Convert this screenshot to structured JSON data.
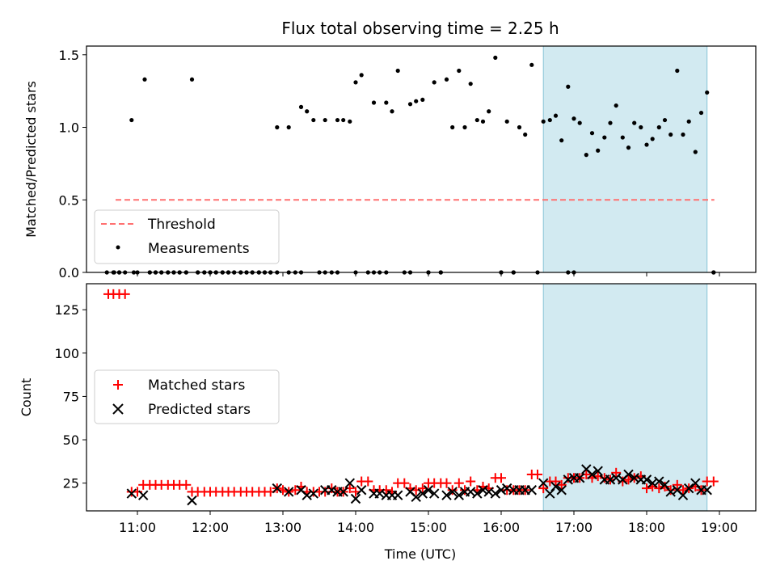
{
  "chart_data": {
    "title": "Flux total observing time = 2.25 h",
    "xlabel": "Time (UTC)",
    "x_ticks": [
      "11:00",
      "12:00",
      "13:00",
      "14:00",
      "15:00",
      "16:00",
      "17:00",
      "18:00",
      "19:00"
    ],
    "x_range_hours": [
      10.3,
      19.5
    ],
    "highlight_span_hours": [
      16.58,
      18.83
    ],
    "colors": {
      "highlight": "#add8e6",
      "matched": "#ff0000",
      "predicted": "#000000",
      "threshold": "#ff7070"
    },
    "panels": [
      {
        "type": "scatter",
        "ylabel": "Matched/Predicted stars",
        "ylim": [
          0,
          1.56
        ],
        "y_ticks": [
          0.0,
          0.5,
          1.0,
          1.5
        ],
        "y_tick_labels": [
          "0.0",
          "0.5",
          "1.0",
          "1.5"
        ],
        "legend": {
          "placement": "lower-left",
          "entries": [
            "Threshold",
            "Measurements"
          ]
        },
        "series": [
          {
            "name": "Threshold",
            "kind": "dashed-line",
            "x": [
              10.7,
              18.93
            ],
            "y": [
              0.5,
              0.5
            ]
          },
          {
            "name": "Measurements",
            "kind": "points",
            "x": [
              10.68,
              10.75,
              10.83,
              10.92,
              10.95,
              11.1,
              11.17,
              11.25,
              11.33,
              11.42,
              11.5,
              11.58,
              11.67,
              11.75,
              11.83,
              11.92,
              12.0,
              12.08,
              12.17,
              12.25,
              12.33,
              12.42,
              12.5,
              12.58,
              12.67,
              12.75,
              12.83,
              12.92,
              13.08,
              13.17,
              13.25,
              13.33,
              13.42,
              13.5,
              13.58,
              13.67,
              13.75,
              13.83,
              13.92,
              14.0,
              14.08,
              14.17,
              14.25,
              14.33,
              14.42,
              14.5,
              14.58,
              14.67,
              14.75,
              14.83,
              14.92,
              15.0,
              15.08,
              15.17,
              15.25,
              15.33,
              15.42,
              15.5,
              15.58,
              15.67,
              15.75,
              15.83,
              15.92,
              16.0,
              16.08,
              16.17,
              16.25,
              16.33,
              16.42,
              16.5,
              16.58,
              16.67,
              16.75,
              16.83,
              16.92,
              17.0,
              17.08,
              17.17,
              17.25,
              17.33,
              17.42,
              17.5,
              17.58,
              17.67,
              17.75,
              17.83,
              17.92,
              18.0,
              18.08,
              18.17,
              18.25,
              18.33,
              18.42,
              18.5,
              18.58,
              18.67,
              18.75,
              18.83,
              18.92,
              10.58,
              10.67,
              10.75,
              11.0,
              11.17,
              11.25,
              11.33,
              11.42,
              11.5,
              11.58,
              11.67,
              11.83,
              11.92,
              12.0,
              12.08,
              12.17,
              12.25,
              12.33,
              12.42,
              12.5,
              12.58,
              12.67,
              12.75,
              12.83,
              12.92,
              13.08,
              13.25,
              13.58,
              13.75,
              14.0,
              14.25,
              14.42,
              14.75,
              15.0,
              15.17,
              16.0,
              16.17,
              16.92,
              17.0,
              18.92
            ],
            "y": [
              0,
              0,
              0,
              1.05,
              0,
              1.33,
              0,
              0,
              0,
              0,
              0,
              0,
              0,
              1.33,
              0,
              0,
              0,
              0,
              0,
              0,
              0,
              0,
              0,
              0,
              0,
              0,
              0,
              1.0,
              1.0,
              0,
              1.14,
              1.11,
              1.05,
              0,
              1.05,
              0,
              1.05,
              1.05,
              1.04,
              1.31,
              1.36,
              0,
              1.17,
              0,
              1.17,
              1.11,
              1.39,
              0,
              1.16,
              1.18,
              1.19,
              0,
              1.31,
              0,
              1.33,
              1.0,
              1.39,
              1.0,
              1.3,
              1.05,
              1.04,
              1.11,
              1.48,
              0,
              1.04,
              0,
              1.0,
              0.95,
              1.43,
              0,
              1.04,
              1.05,
              1.08,
              0.91,
              1.28,
              1.06,
              1.03,
              0.81,
              0.96,
              0.84,
              0.93,
              1.03,
              1.15,
              0.93,
              0.86,
              1.03,
              1.0,
              0.88,
              0.92,
              1.0,
              1.05,
              0.95,
              1.39,
              0.95,
              1.04,
              0.83,
              1.1,
              1.24,
              0,
              0,
              0,
              0,
              0,
              0,
              0,
              0,
              0,
              0,
              0,
              0,
              0,
              0,
              0,
              0,
              0,
              0,
              0,
              0,
              0,
              0,
              0,
              0,
              0,
              0,
              0,
              0,
              0,
              0,
              0,
              0,
              0,
              0,
              0,
              0,
              0,
              0,
              0,
              0,
              0
            ]
          }
        ]
      },
      {
        "type": "scatter",
        "ylabel": "Count",
        "ylim": [
          9,
          140
        ],
        "y_ticks": [
          25,
          50,
          75,
          100,
          125
        ],
        "y_tick_labels": [
          "25",
          "50",
          "75",
          "100",
          "125"
        ],
        "legend": {
          "placement": "center-left",
          "entries": [
            "Matched stars",
            "Predicted stars"
          ]
        },
        "series": [
          {
            "name": "Matched stars",
            "marker": "plus",
            "x": [
              10.6,
              10.67,
              10.75,
              10.83,
              10.92,
              11.0,
              11.08,
              11.17,
              11.25,
              11.33,
              11.42,
              11.5,
              11.58,
              11.67,
              11.75,
              11.83,
              11.92,
              12.0,
              12.08,
              12.17,
              12.25,
              12.33,
              12.42,
              12.5,
              12.58,
              12.67,
              12.75,
              12.83,
              12.92,
              13.0,
              13.08,
              13.17,
              13.25,
              13.33,
              13.42,
              13.5,
              13.58,
              13.67,
              13.75,
              13.83,
              13.92,
              14.0,
              14.08,
              14.17,
              14.25,
              14.33,
              14.42,
              14.5,
              14.58,
              14.67,
              14.75,
              14.83,
              14.92,
              15.0,
              15.08,
              15.17,
              15.25,
              15.33,
              15.42,
              15.5,
              15.58,
              15.67,
              15.75,
              15.83,
              15.92,
              16.0,
              16.08,
              16.17,
              16.25,
              16.33,
              16.42,
              16.5,
              16.58,
              16.67,
              16.75,
              16.83,
              16.92,
              17.0,
              17.08,
              17.17,
              17.25,
              17.33,
              17.42,
              17.5,
              17.58,
              17.67,
              17.75,
              17.83,
              17.92,
              18.0,
              18.08,
              18.17,
              18.25,
              18.33,
              18.42,
              18.5,
              18.58,
              18.67,
              18.75,
              18.83,
              18.92
            ],
            "y": [
              134,
              134,
              134,
              134,
              20,
              20,
              24,
              24,
              24,
              24,
              24,
              24,
              24,
              24,
              20,
              20,
              20,
              20,
              20,
              20,
              20,
              20,
              20,
              20,
              20,
              20,
              20,
              20,
              22,
              21,
              20,
              21,
              23,
              20,
              20,
              20,
              20,
              22,
              20,
              20,
              22,
              20,
              26,
              26,
              21,
              21,
              21,
              20,
              25,
              25,
              22,
              21,
              22,
              25,
              25,
              25,
              25,
              21,
              25,
              21,
              26,
              21,
              23,
              22,
              28,
              28,
              21,
              21,
              21,
              21,
              30,
              30,
              22,
              26,
              26,
              24,
              28,
              28,
              28,
              30,
              28,
              29,
              28,
              27,
              31,
              26,
              27,
              28,
              29,
              22,
              23,
              22,
              23,
              21,
              24,
              21,
              22,
              23,
              21,
              26,
              26
            ]
          },
          {
            "name": "Predicted stars",
            "marker": "x",
            "x": [
              10.92,
              11.08,
              11.75,
              12.92,
              13.08,
              13.25,
              13.33,
              13.42,
              13.58,
              13.67,
              13.75,
              13.83,
              13.92,
              14.0,
              14.08,
              14.25,
              14.33,
              14.42,
              14.5,
              14.58,
              14.75,
              14.83,
              14.92,
              15.0,
              15.08,
              15.25,
              15.33,
              15.42,
              15.5,
              15.58,
              15.67,
              15.75,
              15.83,
              15.92,
              16.0,
              16.08,
              16.17,
              16.25,
              16.33,
              16.42,
              16.58,
              16.67,
              16.75,
              16.83,
              16.92,
              17.0,
              17.08,
              17.17,
              17.25,
              17.33,
              17.42,
              17.5,
              17.58,
              17.67,
              17.75,
              17.83,
              17.92,
              18.0,
              18.08,
              18.17,
              18.25,
              18.33,
              18.42,
              18.5,
              18.58,
              18.67,
              18.75,
              18.83
            ],
            "y": [
              19,
              18,
              15,
              22,
              20,
              21,
              18,
              19,
              21,
              21,
              20,
              20,
              25,
              16,
              21,
              19,
              19,
              18,
              18,
              18,
              20,
              17,
              19,
              21,
              19,
              18,
              20,
              18,
              20,
              20,
              19,
              21,
              20,
              19,
              21,
              22,
              21,
              21,
              21,
              21,
              25,
              19,
              23,
              21,
              27,
              28,
              28,
              33,
              30,
              32,
              27,
              27,
              28,
              27,
              30,
              28,
              27,
              27,
              25,
              26,
              24,
              20,
              21,
              18,
              22,
              25,
              21,
              21
            ]
          }
        ]
      }
    ]
  }
}
